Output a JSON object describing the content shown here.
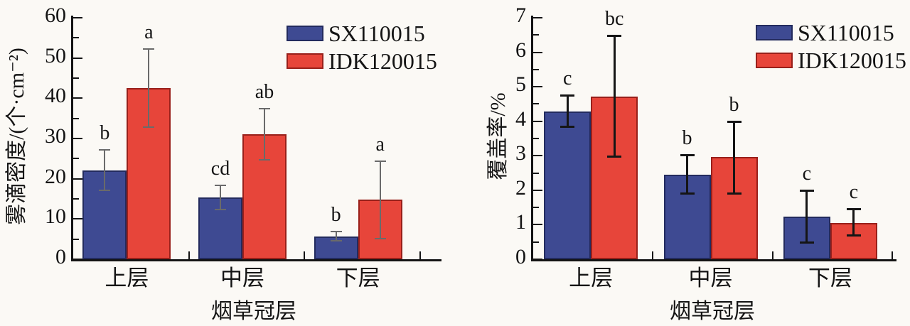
{
  "figure": {
    "background": "#fbf9f5",
    "axis_color": "#141414"
  },
  "chart_data": [
    {
      "id": "droplet-density",
      "type": "bar",
      "title": "",
      "xlabel": "烟草冠层",
      "ylabel": "雾滴密度/(个·cm⁻²)",
      "categories": [
        "上层",
        "中层",
        "下层"
      ],
      "ylim": [
        0,
        60
      ],
      "ytick_major": 10,
      "ytick_minor": 5,
      "ytick_labels": [
        "0",
        "10",
        "20",
        "30",
        "40",
        "50",
        "60"
      ],
      "grid": false,
      "legend_position": "top-right-inside",
      "error_bar_color": "#6a6a6a",
      "series": [
        {
          "name": "SX110015",
          "color": "#3e4a92",
          "edge_color": "#232b5e",
          "values": [
            22.1,
            15.3,
            5.6
          ],
          "error_low": [
            17.0,
            12.1,
            4.4
          ],
          "error_high": [
            27.3,
            18.6,
            7.1
          ],
          "sig_letters": [
            "b",
            "cd",
            "b"
          ]
        },
        {
          "name": "IDK120015",
          "color": "#e7453a",
          "edge_color": "#99201a",
          "values": [
            42.6,
            31.0,
            14.8
          ],
          "error_low": [
            32.6,
            24.6,
            4.9
          ],
          "error_high": [
            52.5,
            37.6,
            24.6
          ],
          "sig_letters": [
            "a",
            "ab",
            "a"
          ]
        }
      ]
    },
    {
      "id": "coverage-rate",
      "type": "bar",
      "title": "",
      "xlabel": "烟草冠层",
      "ylabel": "覆盖率/%",
      "categories": [
        "上层",
        "中层",
        "下层"
      ],
      "ylim": [
        0,
        7
      ],
      "ytick_major": 1,
      "ytick_minor": 0.5,
      "ytick_labels": [
        "0",
        "1",
        "2",
        "3",
        "4",
        "5",
        "6",
        "7"
      ],
      "grid": false,
      "legend_position": "top-right-inside",
      "error_bar_color": "#151515",
      "series": [
        {
          "name": "SX110015",
          "color": "#3e4a92",
          "edge_color": "#232b5e",
          "values": [
            4.28,
            2.45,
            1.24
          ],
          "error_low": [
            3.8,
            1.87,
            0.45
          ],
          "error_high": [
            4.78,
            3.05,
            2.02
          ],
          "sig_letters": [
            "c",
            "b",
            "c"
          ]
        },
        {
          "name": "IDK120015",
          "color": "#e7453a",
          "edge_color": "#99201a",
          "values": [
            4.72,
            2.96,
            1.05
          ],
          "error_low": [
            2.94,
            1.87,
            0.66
          ],
          "error_high": [
            6.5,
            4.02,
            1.48
          ],
          "sig_letters": [
            "bc",
            "b",
            "c"
          ]
        }
      ]
    }
  ]
}
